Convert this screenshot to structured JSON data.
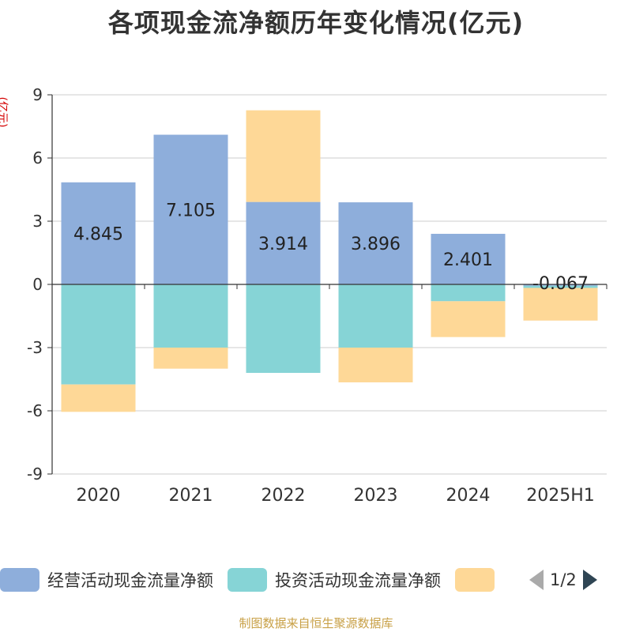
{
  "title": "各项现金流净额历年变化情况(亿元)",
  "unit_label": "(亿元)",
  "source": "制图数据来自恒生聚源数据库",
  "legend": {
    "items": [
      {
        "label": "经营活动现金流量净额",
        "color": "#8eaedb"
      },
      {
        "label": "投资活动现金流量净额",
        "color": "#86d4d6"
      },
      {
        "label": "",
        "color": "#fed897"
      }
    ],
    "page_text": "1/2"
  },
  "chart_data": {
    "type": "bar",
    "stacked": true,
    "categories": [
      "2020",
      "2021",
      "2022",
      "2023",
      "2024",
      "2025H1"
    ],
    "ylim": [
      -9,
      9
    ],
    "yticks": [
      9,
      6,
      3,
      0,
      -3,
      -6,
      -9
    ],
    "ytick_labels": [
      "9",
      "6",
      "3",
      "0",
      "-3",
      "-6",
      "-9"
    ],
    "grid": true,
    "series": [
      {
        "name": "经营活动现金流量净额",
        "color": "#8eaedb",
        "values": [
          4.845,
          7.105,
          3.914,
          3.896,
          2.401,
          -0.067
        ],
        "labels": [
          "4.845",
          "7.105",
          "3.914",
          "3.896",
          "2.401",
          "-0.067"
        ]
      },
      {
        "name": "投资活动现金流量净额",
        "color": "#86d4d6",
        "values": [
          -4.75,
          -3.0,
          -4.2,
          -3.0,
          -0.8,
          -0.1
        ]
      },
      {
        "name": "",
        "color": "#fed897",
        "values": [
          -1.3,
          -1.0,
          4.35,
          -1.65,
          -1.7,
          -1.55
        ]
      }
    ]
  }
}
